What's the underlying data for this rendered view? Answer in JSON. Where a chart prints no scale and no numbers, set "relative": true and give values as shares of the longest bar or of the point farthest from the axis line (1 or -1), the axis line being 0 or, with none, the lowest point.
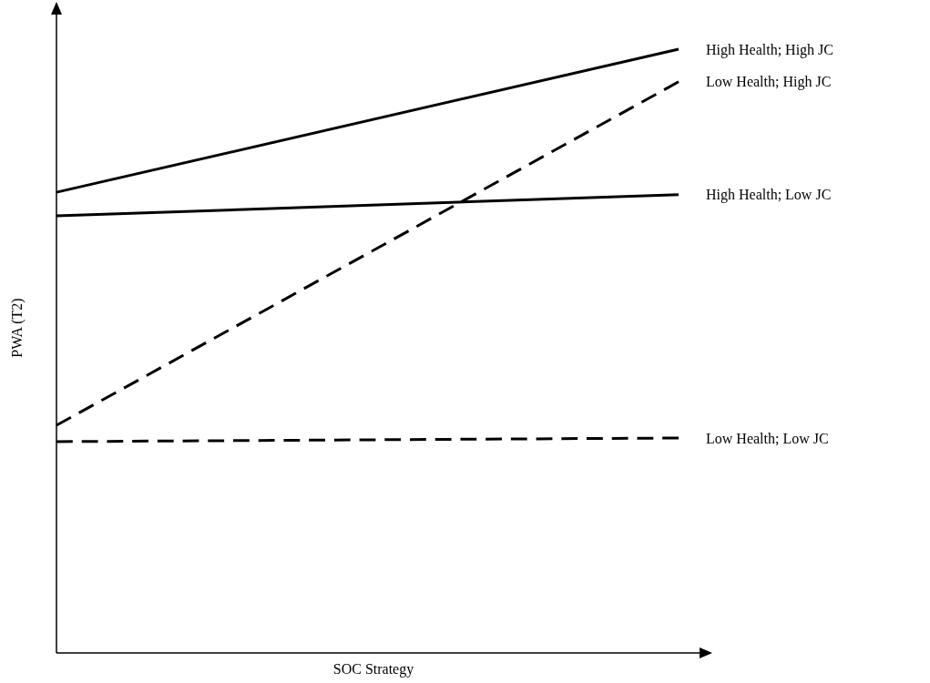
{
  "chart_data": {
    "type": "line",
    "relative": true,
    "xlabel": "SOC Strategy",
    "ylabel": "PWA (T2)",
    "categories": [
      null,
      null
    ],
    "marker": "none",
    "legend": false,
    "series": [
      {
        "name": "High Health; High JC",
        "color": "#000000",
        "line_style": "solid",
        "values": [
          0.763,
          1
        ]
      },
      {
        "name": "Low Health; High JC",
        "color": "#000000",
        "line_style": "dashed",
        "values": [
          0.377,
          0.946
        ]
      },
      {
        "name": "High Health; Low JC",
        "color": "#000000",
        "line_style": "solid",
        "values": [
          0.724,
          0.759
        ]
      },
      {
        "name": "Low Health; Low JC",
        "color": "#000000",
        "line_style": "dashed",
        "values": [
          0.35,
          0.356
        ]
      }
    ]
  }
}
